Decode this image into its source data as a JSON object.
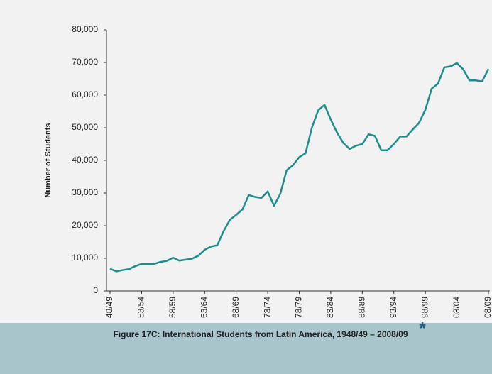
{
  "chart_data": {
    "type": "line",
    "caption": "Figure 17C: International Students from Latin America, 1948/49 – 2008/09",
    "footnote_marker": "*",
    "y_label": "Number of Students",
    "categories": [
      "48/49",
      null,
      null,
      null,
      null,
      "53/54",
      null,
      null,
      null,
      null,
      "58/59",
      null,
      null,
      null,
      null,
      "63/64",
      null,
      null,
      null,
      null,
      "68/69",
      null,
      null,
      null,
      null,
      "73/74",
      null,
      null,
      null,
      null,
      "78/79",
      null,
      null,
      null,
      null,
      "83/84",
      null,
      null,
      null,
      null,
      "88/89",
      null,
      null,
      null,
      null,
      "93/94",
      null,
      null,
      null,
      null,
      "98/99",
      null,
      null,
      null,
      null,
      "03/04",
      null,
      null,
      null,
      null,
      "08/09"
    ],
    "series": [
      {
        "name": "International Students from Latin America",
        "color": "#1b8d8d",
        "values": [
          6800,
          6000,
          6400,
          6700,
          7600,
          8300,
          8300,
          8300,
          8900,
          9200,
          10200,
          9300,
          9600,
          9900,
          10800,
          12600,
          13600,
          14000,
          18300,
          21800,
          23300,
          25000,
          29400,
          28800,
          28500,
          30500,
          26100,
          29800,
          37000,
          38500,
          41000,
          42200,
          50000,
          55300,
          57000,
          52500,
          48500,
          45300,
          43500,
          44500,
          45000,
          48000,
          47500,
          43100,
          43100,
          45000,
          47300,
          47300,
          49500,
          51500,
          55500,
          62000,
          63500,
          68500,
          68800,
          69800,
          67900,
          64500,
          64500,
          64200,
          68000
        ]
      }
    ],
    "ylim": [
      0,
      80000
    ],
    "yticks": [
      0,
      {
        "value": 10000,
        "label": "10,000"
      },
      {
        "value": 20000,
        "label": "20,000"
      },
      {
        "value": 30000,
        "label": "30,000"
      },
      {
        "value": 40000,
        "label": "40,000"
      },
      {
        "value": 50000,
        "label": "50,000"
      },
      {
        "value": 60000,
        "label": "60,000"
      },
      {
        "value": 70000,
        "label": "70,000"
      },
      {
        "value": 80000,
        "label": "80,000"
      }
    ]
  }
}
